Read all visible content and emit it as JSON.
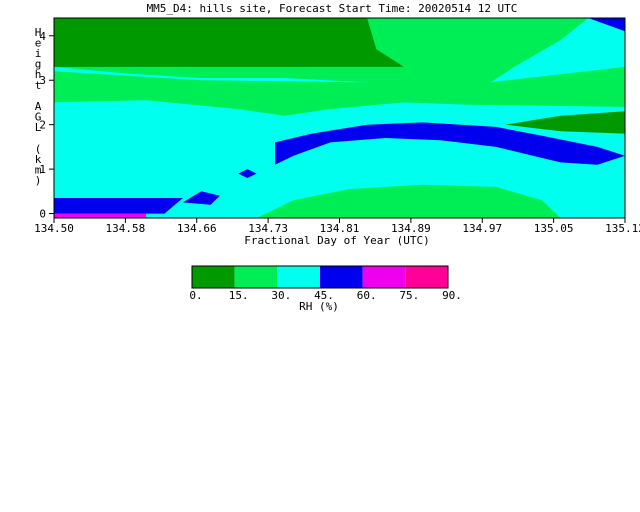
{
  "chart_data": {
    "type": "heatmap",
    "title": "MM5_D4: hills site,  Forecast Start Time: 20020514 12 UTC",
    "xlabel": "Fractional Day of Year (UTC)",
    "ylabel": "Height AGL (km)",
    "x_ticks": [
      "134.50",
      "134.58",
      "134.66",
      "134.73",
      "134.81",
      "134.89",
      "134.97",
      "135.05",
      "135.12"
    ],
    "y_ticks": [
      "0",
      "1",
      "2",
      "3",
      "4"
    ],
    "xlim": [
      134.5,
      135.12
    ],
    "ylim": [
      -0.1,
      4.4
    ],
    "grid": false,
    "colorbar": {
      "label": "RH (%)",
      "ticks": [
        "0.",
        "15.",
        "30.",
        "45.",
        "60.",
        "75.",
        "90."
      ],
      "bins": [
        {
          "from": 0,
          "to": 15,
          "color": "#009900"
        },
        {
          "from": 15,
          "to": 30,
          "color": "#00ee55"
        },
        {
          "from": 30,
          "to": 45,
          "color": "#00ffee"
        },
        {
          "from": 45,
          "to": 60,
          "color": "#0000ee"
        },
        {
          "from": 60,
          "to": 75,
          "color": "#ee00ee"
        },
        {
          "from": 75,
          "to": 90,
          "color": "#ff0099"
        }
      ]
    },
    "regions": [
      {
        "name": "dry-aloft",
        "rh_bin": "0-15",
        "points": [
          [
            134.5,
            4.4
          ],
          [
            134.84,
            4.4
          ],
          [
            134.85,
            3.7
          ],
          [
            134.88,
            3.3
          ],
          [
            134.5,
            3.3
          ]
        ]
      },
      {
        "name": "dry-mid-right",
        "rh_bin": "0-15",
        "points": [
          [
            134.99,
            2.0
          ],
          [
            135.05,
            2.2
          ],
          [
            135.12,
            2.3
          ],
          [
            135.12,
            1.8
          ],
          [
            135.05,
            1.85
          ]
        ]
      },
      {
        "name": "blue-band",
        "rh_bin": "45-60",
        "points": [
          [
            134.74,
            1.6
          ],
          [
            134.78,
            1.8
          ],
          [
            134.84,
            2.0
          ],
          [
            134.9,
            2.05
          ],
          [
            134.98,
            1.95
          ],
          [
            135.03,
            1.75
          ],
          [
            135.09,
            1.5
          ],
          [
            135.12,
            1.3
          ],
          [
            135.09,
            1.1
          ],
          [
            135.05,
            1.15
          ],
          [
            134.98,
            1.5
          ],
          [
            134.92,
            1.65
          ],
          [
            134.86,
            1.7
          ],
          [
            134.8,
            1.6
          ],
          [
            134.76,
            1.3
          ],
          [
            134.74,
            1.1
          ]
        ]
      },
      {
        "name": "blue-top-right",
        "rh_bin": "45-60",
        "points": [
          [
            135.08,
            4.4
          ],
          [
            135.12,
            4.4
          ],
          [
            135.12,
            4.1
          ]
        ]
      },
      {
        "name": "blue-blob-1",
        "rh_bin": "45-60",
        "points": [
          [
            134.66,
            0.5
          ],
          [
            134.68,
            0.4
          ],
          [
            134.67,
            0.2
          ],
          [
            134.64,
            0.25
          ]
        ]
      },
      {
        "name": "blue-blob-2",
        "rh_bin": "45-60",
        "points": [
          [
            134.71,
            1.0
          ],
          [
            134.72,
            0.9
          ],
          [
            134.71,
            0.8
          ],
          [
            134.7,
            0.9
          ]
        ]
      },
      {
        "name": "blue-bottom-left",
        "rh_bin": "45-60",
        "points": [
          [
            134.5,
            0.35
          ],
          [
            134.64,
            0.35
          ],
          [
            134.62,
            0.0
          ],
          [
            134.5,
            0.0
          ]
        ]
      },
      {
        "name": "magenta-bottom-left",
        "rh_bin": "60-75",
        "points": [
          [
            134.5,
            0.0
          ],
          [
            134.6,
            0.0
          ],
          [
            134.6,
            -0.1
          ],
          [
            134.5,
            -0.1
          ]
        ]
      }
    ]
  }
}
